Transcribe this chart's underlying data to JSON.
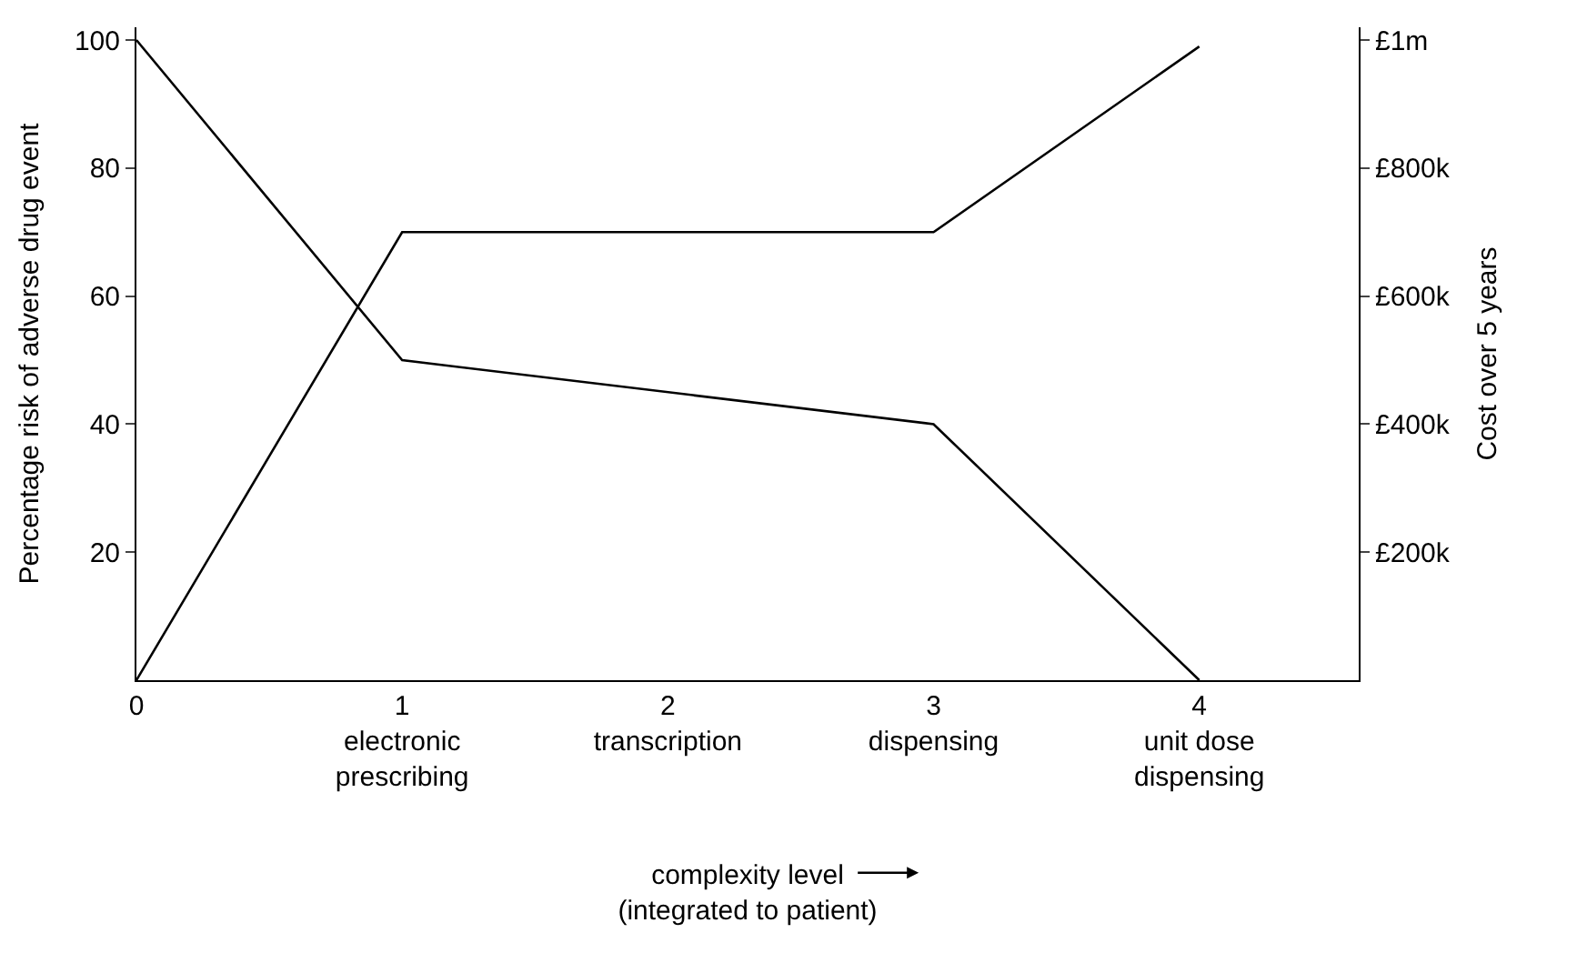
{
  "chart_data": {
    "type": "line",
    "xlabel": "complexity level\n(integrated to patient)",
    "ylabel": "Percentage risk of adverse drug event",
    "y2label": "Cost over 5 years",
    "x": [
      0,
      1,
      2,
      3,
      4
    ],
    "series": [
      {
        "color": "#000000",
        "values": [
          100,
          50,
          null,
          40,
          0
        ]
      },
      {
        "color": "#000000",
        "axis": "y2",
        "values": [
          0,
          700000,
          null,
          700000,
          990000
        ]
      }
    ],
    "xlim": [
      0,
      4.6
    ],
    "xticks": [
      0,
      {
        "value": 1,
        "label": "1\nelectronic\nprescribing"
      },
      {
        "value": 2,
        "label": "2\ntranscription"
      },
      {
        "value": 3,
        "label": "3\ndispensing"
      },
      {
        "value": 4,
        "label": "4\nunit dose\ndispensing"
      }
    ],
    "ylim": [
      0,
      102
    ],
    "yticks": [
      20,
      40,
      60,
      80,
      100
    ],
    "y2lim": [
      0,
      1020000
    ],
    "y2ticks": [
      {
        "value": 200000,
        "label": "£200k"
      },
      {
        "value": 400000,
        "label": "£400k"
      },
      {
        "value": 600000,
        "label": "£600k"
      },
      {
        "value": 800000,
        "label": "£800k"
      },
      {
        "value": 1000000,
        "label": "£1m"
      }
    ],
    "marker": "none",
    "line_style": "solid"
  }
}
